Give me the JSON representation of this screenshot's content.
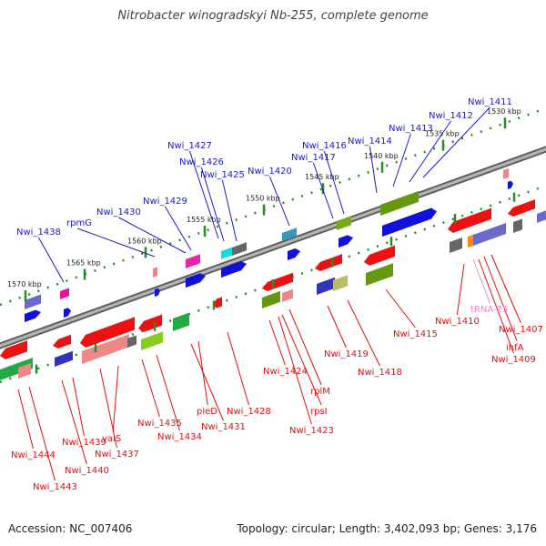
{
  "title": "Nitrobacter winogradskyi Nb-255, complete genome",
  "accession_label": "Accession: NC_007406",
  "summary_label": "Topology: circular; Length: 3,402,093 bp; Genes: 3,176",
  "colors": {
    "backbone": "#8a8a8a",
    "tick": "#2a8a2a",
    "upper_label": "#1a1acc",
    "lower_label": "#dd1111",
    "trna_label": "#ee88cc"
  },
  "scale": {
    "unit": "kbp",
    "ticks": [
      {
        "kbp": 1530,
        "label": "1530 kbp"
      },
      {
        "kbp": 1535,
        "label": "1535 kbp"
      },
      {
        "kbp": 1540,
        "label": "1540 kbp"
      },
      {
        "kbp": 1545,
        "label": "1545 kbp"
      },
      {
        "kbp": 1550,
        "label": "1550 kbp"
      },
      {
        "kbp": 1555,
        "label": "1555 kbp"
      },
      {
        "kbp": 1560,
        "label": "1560 kbp"
      },
      {
        "kbp": 1565,
        "label": "1565 kbp"
      },
      {
        "kbp": 1570,
        "label": "1570 kbp"
      }
    ]
  },
  "upper_genes": [
    {
      "label": "Nwi_1411"
    },
    {
      "label": "Nwi_1412"
    },
    {
      "label": "Nwi_1413"
    },
    {
      "label": "Nwi_1414"
    },
    {
      "label": "Nwi_1416"
    },
    {
      "label": "Nwi_1417"
    },
    {
      "label": "Nwi_1420"
    },
    {
      "label": "Nwi_1427"
    },
    {
      "label": "Nwi_1426"
    },
    {
      "label": "Nwi_1425"
    },
    {
      "label": "Nwi_1429"
    },
    {
      "label": "Nwi_1430"
    },
    {
      "label": "rpmG"
    },
    {
      "label": "Nwi_1438"
    }
  ],
  "lower_genes": [
    {
      "label": "Nwi_1407"
    },
    {
      "label": "ihfA"
    },
    {
      "label": "Nwi_1409"
    },
    {
      "label": "Nwi_1410"
    },
    {
      "label": "Nwi_1415"
    },
    {
      "label": "Nwi_1418"
    },
    {
      "label": "Nwi_1419"
    },
    {
      "label": "rplM"
    },
    {
      "label": "rpsI"
    },
    {
      "label": "Nwi_1423"
    },
    {
      "label": "Nwi_1424"
    },
    {
      "label": "Nwi_1428"
    },
    {
      "label": "pleD"
    },
    {
      "label": "Nwi_1431"
    },
    {
      "label": "Nwi_1434"
    },
    {
      "label": "Nwi_1435"
    },
    {
      "label": "valS"
    },
    {
      "label": "Nwi_1437"
    },
    {
      "label": "Nwi_1439"
    },
    {
      "label": "Nwi_1440"
    },
    {
      "label": "Nwi_1443"
    },
    {
      "label": "Nwi_1444"
    }
  ],
  "rna_genes": [
    {
      "label": "tRNA-25"
    }
  ]
}
